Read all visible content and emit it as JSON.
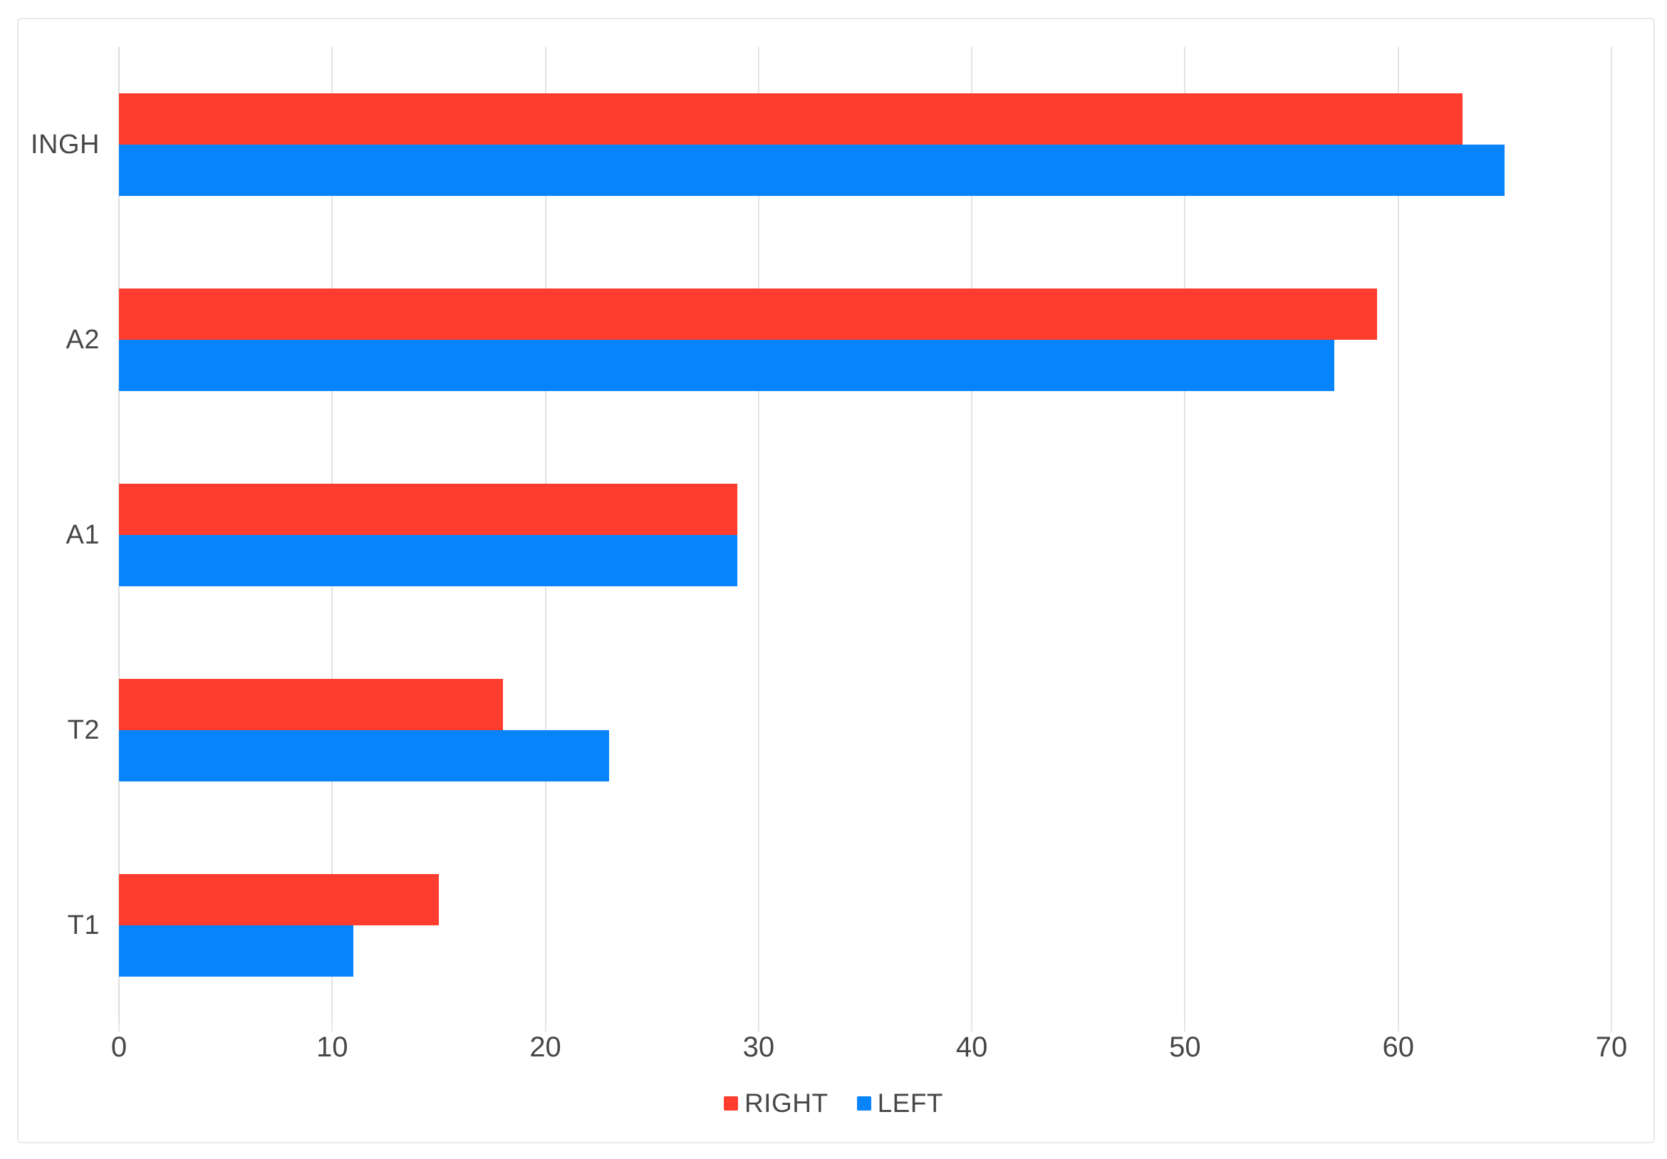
{
  "chart_data": {
    "type": "bar",
    "orientation": "horizontal",
    "title": "",
    "categories": [
      "INGH",
      "A2",
      "A1",
      "T2",
      "T1"
    ],
    "series": [
      {
        "name": "RIGHT",
        "color": "#ff3d2e",
        "values": [
          63,
          59,
          29,
          18,
          15
        ]
      },
      {
        "name": "LEFT",
        "color": "#0884fb",
        "values": [
          65,
          57,
          29,
          23,
          11
        ]
      }
    ],
    "xlabel": "",
    "ylabel": "",
    "xlim": [
      0,
      70
    ],
    "xticks": [
      0,
      10,
      20,
      30,
      40,
      50,
      60,
      70
    ],
    "grid": true,
    "legend_position": "bottom"
  },
  "legend": {
    "items": [
      {
        "label": "RIGHT",
        "color": "#ff3d2e"
      },
      {
        "label": "LEFT",
        "color": "#0884fb"
      }
    ]
  },
  "colors": {
    "background": "#ffffff",
    "card_border": "#e8e8e8",
    "gridline": "#e3e3e3",
    "zero_line": "#dcdcdc",
    "text": "#474747",
    "right_series": "#ff3d2e",
    "left_series": "#0884fb"
  }
}
